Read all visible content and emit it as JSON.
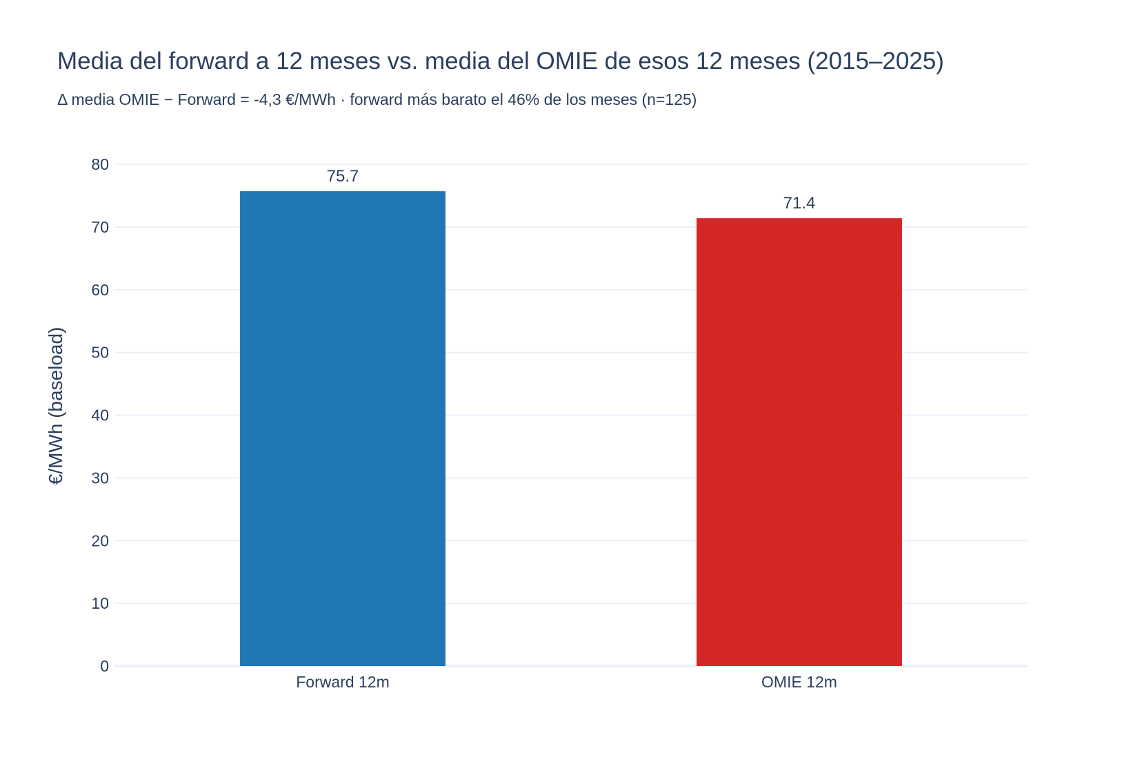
{
  "chart_data": {
    "type": "bar",
    "title": "Media del forward a 12 meses vs. media del OMIE de esos 12 meses (2015–2025)",
    "subtitle": "Δ media OMIE − Forward = -4,3 €/MWh · forward más barato el 46% de los meses (n=125)",
    "categories": [
      "Forward 12m",
      "OMIE 12m"
    ],
    "values": [
      75.7,
      71.4
    ],
    "data_labels": [
      "75.7",
      "71.4"
    ],
    "colors": [
      "#1f77b4",
      "#d62728"
    ],
    "xlabel": "",
    "ylabel": "€/MWh (baseload)",
    "ylim": [
      0,
      80
    ],
    "yticks": [
      0,
      10,
      20,
      30,
      40,
      50,
      60,
      70,
      80
    ],
    "grid": true,
    "legend": "none"
  }
}
